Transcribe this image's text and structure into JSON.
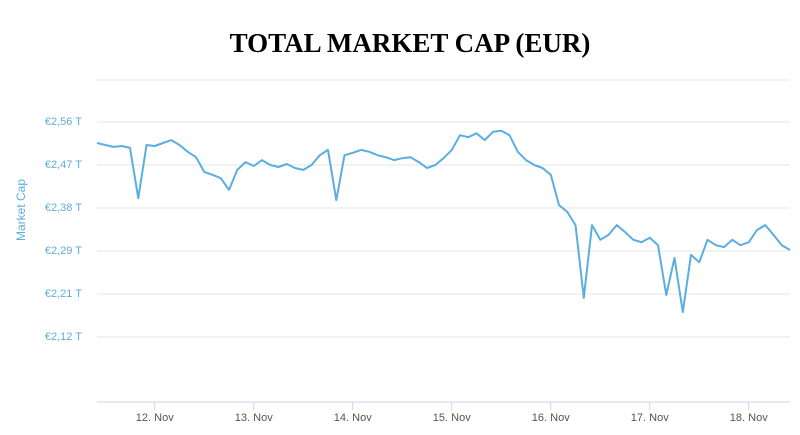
{
  "chart_data": {
    "type": "line",
    "title": "TOTAL MARKET CAP (EUR)",
    "y_label": "Market Cap",
    "categories": [
      null,
      null,
      null,
      null,
      null,
      null,
      null,
      "12. Nov",
      null,
      null,
      null,
      null,
      null,
      null,
      null,
      null,
      null,
      null,
      null,
      "13. Nov",
      null,
      null,
      null,
      null,
      null,
      null,
      null,
      null,
      null,
      null,
      null,
      "14. Nov",
      null,
      null,
      null,
      null,
      null,
      null,
      null,
      null,
      null,
      null,
      null,
      "15. Nov",
      null,
      null,
      null,
      null,
      null,
      null,
      null,
      null,
      null,
      null,
      null,
      "16. Nov",
      null,
      null,
      null,
      null,
      null,
      null,
      null,
      null,
      null,
      null,
      null,
      "17. Nov",
      null,
      null,
      null,
      null,
      null,
      null,
      null,
      null,
      null,
      null,
      null,
      "18. Nov",
      null,
      null,
      null,
      null,
      null
    ],
    "series": [
      {
        "name": "Market Cap",
        "color": "#5aaee0",
        "values": [
          2.515,
          2.511,
          2.507,
          2.509,
          2.505,
          2.402,
          2.511,
          2.509,
          2.515,
          2.521,
          2.511,
          2.497,
          2.486,
          2.456,
          2.45,
          2.443,
          2.419,
          2.46,
          2.476,
          2.468,
          2.48,
          2.47,
          2.466,
          2.472,
          2.464,
          2.46,
          2.47,
          2.49,
          2.501,
          2.398,
          2.49,
          2.495,
          2.501,
          2.497,
          2.49,
          2.486,
          2.48,
          2.484,
          2.486,
          2.476,
          2.464,
          2.47,
          2.484,
          2.501,
          2.531,
          2.527,
          2.535,
          2.521,
          2.538,
          2.54,
          2.531,
          2.497,
          2.48,
          2.47,
          2.464,
          2.45,
          2.388,
          2.374,
          2.347,
          2.198,
          2.347,
          2.317,
          2.327,
          2.347,
          2.333,
          2.317,
          2.312,
          2.321,
          2.306,
          2.204,
          2.28,
          2.169,
          2.286,
          2.271,
          2.317,
          2.306,
          2.302,
          2.317,
          2.306,
          2.312,
          2.337,
          2.347,
          2.327,
          2.306,
          2.296
        ]
      }
    ],
    "ylim": [
      1.985,
      2.644
    ],
    "yticks": [
      {
        "value": 2.558,
        "label": "€2,56 T"
      },
      {
        "value": 2.47,
        "label": "€2,47 T"
      },
      {
        "value": 2.382,
        "label": "€2,38 T"
      },
      {
        "value": 2.294,
        "label": "€2,29 T"
      },
      {
        "value": 2.206,
        "label": "€2,21 T"
      },
      {
        "value": 2.118,
        "label": "€2,12 T"
      }
    ],
    "grid": true
  }
}
